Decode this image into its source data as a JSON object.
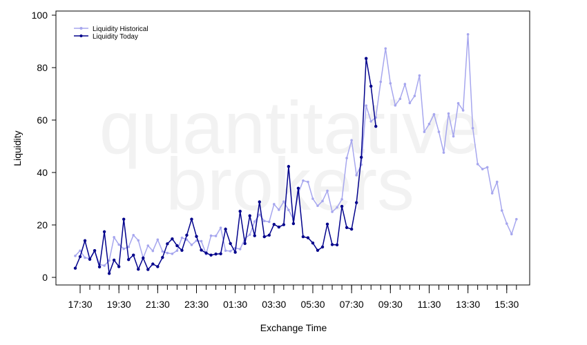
{
  "watermark": {
    "line1": "quantitative",
    "line2": "brokers"
  },
  "colors": {
    "historical": "#a6a6ee",
    "today": "#00008b",
    "axis": "#000000"
  },
  "chart_data": {
    "type": "line",
    "title": "",
    "xlabel": "Exchange Time",
    "ylabel": "Liquidity",
    "ylim": [
      0,
      100
    ],
    "yticks": [
      0,
      20,
      40,
      60,
      80,
      100
    ],
    "x_tick_labels": [
      "17:30",
      "19:30",
      "21:30",
      "23:30",
      "01:30",
      "03:30",
      "05:30",
      "07:30",
      "09:30",
      "11:30",
      "13:30",
      "15:30"
    ],
    "x_tick_label_index_step": 8,
    "grid": false,
    "legend": "top-left",
    "series": [
      {
        "name": "Liquidity Historical",
        "color": "#a6a6ee",
        "values": [
          8.2,
          10.2,
          7.5,
          7.2,
          10.1,
          4.9,
          4.5,
          6.4,
          15.3,
          12.5,
          10.9,
          11.6,
          16.1,
          14.1,
          7.4,
          12.1,
          10.1,
          14.4,
          9.9,
          9.3,
          9.0,
          10.2,
          15.1,
          14.4,
          12.4,
          14.0,
          13.8,
          8.9,
          15.9,
          15.8,
          18.9,
          10.2,
          10.0,
          11.2,
          10.8,
          14.8,
          16.3,
          21.3,
          23.9,
          21.5,
          21.2,
          27.9,
          25.8,
          28.9,
          25.7,
          22.2,
          32.0,
          36.9,
          36.4,
          30.0,
          27.3,
          29.1,
          33.0,
          25.0,
          26.7,
          29.8,
          45.5,
          52.3,
          39.0,
          43.0,
          65.5,
          59.5,
          61.0,
          74.6,
          87.3,
          74.0,
          65.6,
          68.1,
          73.7,
          66.5,
          69.2,
          77.0,
          55.5,
          58.5,
          62.2,
          55.5,
          47.6,
          62.5,
          53.8,
          66.4,
          63.7,
          92.7,
          56.9,
          43.2,
          41.3,
          42.0,
          32.1,
          36.4,
          25.5,
          20.5,
          16.5,
          22.2
        ]
      },
      {
        "name": "Liquidity Today",
        "color": "#00008b",
        "values": [
          3.5,
          7.9,
          14.0,
          6.9,
          10.2,
          4.0,
          17.4,
          1.5,
          6.6,
          4.1,
          22.2,
          6.8,
          8.5,
          3.1,
          7.4,
          3.0,
          5.1,
          4.1,
          7.6,
          12.8,
          14.7,
          12.1,
          10.3,
          16.1,
          22.2,
          15.6,
          10.4,
          9.3,
          8.5,
          8.9,
          9.0,
          18.4,
          12.9,
          9.6,
          25.2,
          12.9,
          23.5,
          15.9,
          28.8,
          15.5,
          16.1,
          20.2,
          19.2,
          20.1,
          42.3,
          20.5,
          34.0,
          15.5,
          15.1,
          13.1,
          10.3,
          11.6,
          20.3,
          12.5,
          12.4,
          27.1,
          19.0,
          18.4,
          28.5,
          45.8,
          83.5,
          72.9,
          57.6
        ]
      }
    ]
  }
}
